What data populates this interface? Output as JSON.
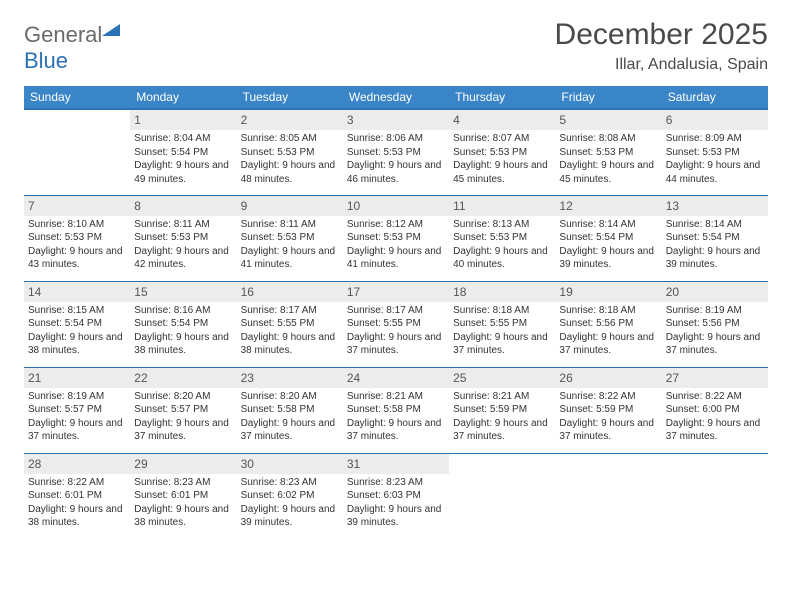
{
  "brand": {
    "part1": "General",
    "part2": "Blue"
  },
  "title": "December 2025",
  "location": "Illar, Andalusia, Spain",
  "colors": {
    "header_bg": "#3a85c7",
    "header_border": "#2a72b5",
    "daynum_bg": "#ececec",
    "text": "#333333",
    "title_text": "#4a4a4a"
  },
  "weekdays": [
    "Sunday",
    "Monday",
    "Tuesday",
    "Wednesday",
    "Thursday",
    "Friday",
    "Saturday"
  ],
  "start_offset": 1,
  "days": [
    {
      "n": 1,
      "sunrise": "8:04 AM",
      "sunset": "5:54 PM",
      "daylight": "9 hours and 49 minutes."
    },
    {
      "n": 2,
      "sunrise": "8:05 AM",
      "sunset": "5:53 PM",
      "daylight": "9 hours and 48 minutes."
    },
    {
      "n": 3,
      "sunrise": "8:06 AM",
      "sunset": "5:53 PM",
      "daylight": "9 hours and 46 minutes."
    },
    {
      "n": 4,
      "sunrise": "8:07 AM",
      "sunset": "5:53 PM",
      "daylight": "9 hours and 45 minutes."
    },
    {
      "n": 5,
      "sunrise": "8:08 AM",
      "sunset": "5:53 PM",
      "daylight": "9 hours and 45 minutes."
    },
    {
      "n": 6,
      "sunrise": "8:09 AM",
      "sunset": "5:53 PM",
      "daylight": "9 hours and 44 minutes."
    },
    {
      "n": 7,
      "sunrise": "8:10 AM",
      "sunset": "5:53 PM",
      "daylight": "9 hours and 43 minutes."
    },
    {
      "n": 8,
      "sunrise": "8:11 AM",
      "sunset": "5:53 PM",
      "daylight": "9 hours and 42 minutes."
    },
    {
      "n": 9,
      "sunrise": "8:11 AM",
      "sunset": "5:53 PM",
      "daylight": "9 hours and 41 minutes."
    },
    {
      "n": 10,
      "sunrise": "8:12 AM",
      "sunset": "5:53 PM",
      "daylight": "9 hours and 41 minutes."
    },
    {
      "n": 11,
      "sunrise": "8:13 AM",
      "sunset": "5:53 PM",
      "daylight": "9 hours and 40 minutes."
    },
    {
      "n": 12,
      "sunrise": "8:14 AM",
      "sunset": "5:54 PM",
      "daylight": "9 hours and 39 minutes."
    },
    {
      "n": 13,
      "sunrise": "8:14 AM",
      "sunset": "5:54 PM",
      "daylight": "9 hours and 39 minutes."
    },
    {
      "n": 14,
      "sunrise": "8:15 AM",
      "sunset": "5:54 PM",
      "daylight": "9 hours and 38 minutes."
    },
    {
      "n": 15,
      "sunrise": "8:16 AM",
      "sunset": "5:54 PM",
      "daylight": "9 hours and 38 minutes."
    },
    {
      "n": 16,
      "sunrise": "8:17 AM",
      "sunset": "5:55 PM",
      "daylight": "9 hours and 38 minutes."
    },
    {
      "n": 17,
      "sunrise": "8:17 AM",
      "sunset": "5:55 PM",
      "daylight": "9 hours and 37 minutes."
    },
    {
      "n": 18,
      "sunrise": "8:18 AM",
      "sunset": "5:55 PM",
      "daylight": "9 hours and 37 minutes."
    },
    {
      "n": 19,
      "sunrise": "8:18 AM",
      "sunset": "5:56 PM",
      "daylight": "9 hours and 37 minutes."
    },
    {
      "n": 20,
      "sunrise": "8:19 AM",
      "sunset": "5:56 PM",
      "daylight": "9 hours and 37 minutes."
    },
    {
      "n": 21,
      "sunrise": "8:19 AM",
      "sunset": "5:57 PM",
      "daylight": "9 hours and 37 minutes."
    },
    {
      "n": 22,
      "sunrise": "8:20 AM",
      "sunset": "5:57 PM",
      "daylight": "9 hours and 37 minutes."
    },
    {
      "n": 23,
      "sunrise": "8:20 AM",
      "sunset": "5:58 PM",
      "daylight": "9 hours and 37 minutes."
    },
    {
      "n": 24,
      "sunrise": "8:21 AM",
      "sunset": "5:58 PM",
      "daylight": "9 hours and 37 minutes."
    },
    {
      "n": 25,
      "sunrise": "8:21 AM",
      "sunset": "5:59 PM",
      "daylight": "9 hours and 37 minutes."
    },
    {
      "n": 26,
      "sunrise": "8:22 AM",
      "sunset": "5:59 PM",
      "daylight": "9 hours and 37 minutes."
    },
    {
      "n": 27,
      "sunrise": "8:22 AM",
      "sunset": "6:00 PM",
      "daylight": "9 hours and 37 minutes."
    },
    {
      "n": 28,
      "sunrise": "8:22 AM",
      "sunset": "6:01 PM",
      "daylight": "9 hours and 38 minutes."
    },
    {
      "n": 29,
      "sunrise": "8:23 AM",
      "sunset": "6:01 PM",
      "daylight": "9 hours and 38 minutes."
    },
    {
      "n": 30,
      "sunrise": "8:23 AM",
      "sunset": "6:02 PM",
      "daylight": "9 hours and 39 minutes."
    },
    {
      "n": 31,
      "sunrise": "8:23 AM",
      "sunset": "6:03 PM",
      "daylight": "9 hours and 39 minutes."
    }
  ],
  "labels": {
    "sunrise": "Sunrise:",
    "sunset": "Sunset:",
    "daylight": "Daylight:"
  }
}
